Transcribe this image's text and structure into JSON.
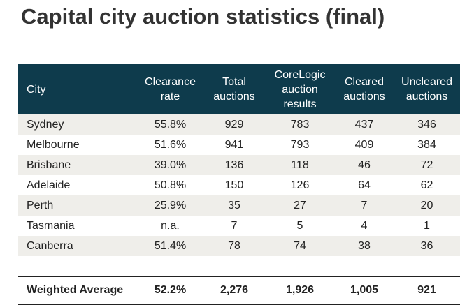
{
  "title": "Capital city auction statistics (final)",
  "headers": {
    "city": "City",
    "clearance_1": "Clearance",
    "clearance_2": "rate",
    "total_1": "Total",
    "total_2": "auctions",
    "corelogic_1": "CoreLogic",
    "corelogic_2": "auction",
    "corelogic_3": "results",
    "cleared_1": "Cleared",
    "cleared_2": "auctions",
    "uncleared_1": "Uncleared",
    "uncleared_2": "auctions"
  },
  "rows": [
    {
      "city": "Sydney",
      "clearance": "55.8%",
      "total": "929",
      "corelogic": "783",
      "cleared": "437",
      "uncleared": "346"
    },
    {
      "city": "Melbourne",
      "clearance": "51.6%",
      "total": "941",
      "corelogic": "793",
      "cleared": "409",
      "uncleared": "384"
    },
    {
      "city": "Brisbane",
      "clearance": "39.0%",
      "total": "136",
      "corelogic": "118",
      "cleared": "46",
      "uncleared": "72"
    },
    {
      "city": "Adelaide",
      "clearance": "50.8%",
      "total": "150",
      "corelogic": "126",
      "cleared": "64",
      "uncleared": "62"
    },
    {
      "city": "Perth",
      "clearance": "25.9%",
      "total": "35",
      "corelogic": "27",
      "cleared": "7",
      "uncleared": "20"
    },
    {
      "city": "Tasmania",
      "clearance": "n.a.",
      "total": "7",
      "corelogic": "5",
      "cleared": "4",
      "uncleared": "1"
    },
    {
      "city": "Canberra",
      "clearance": "51.4%",
      "total": "78",
      "corelogic": "74",
      "cleared": "38",
      "uncleared": "36"
    }
  ],
  "footer": {
    "city": "Weighted Average",
    "clearance": "52.2%",
    "total": "2,276",
    "corelogic": "1,926",
    "cleared": "1,005",
    "uncleared": "921"
  },
  "colors": {
    "header_bg": "#0e3b4c",
    "alt_row_bg": "#efeeea"
  }
}
